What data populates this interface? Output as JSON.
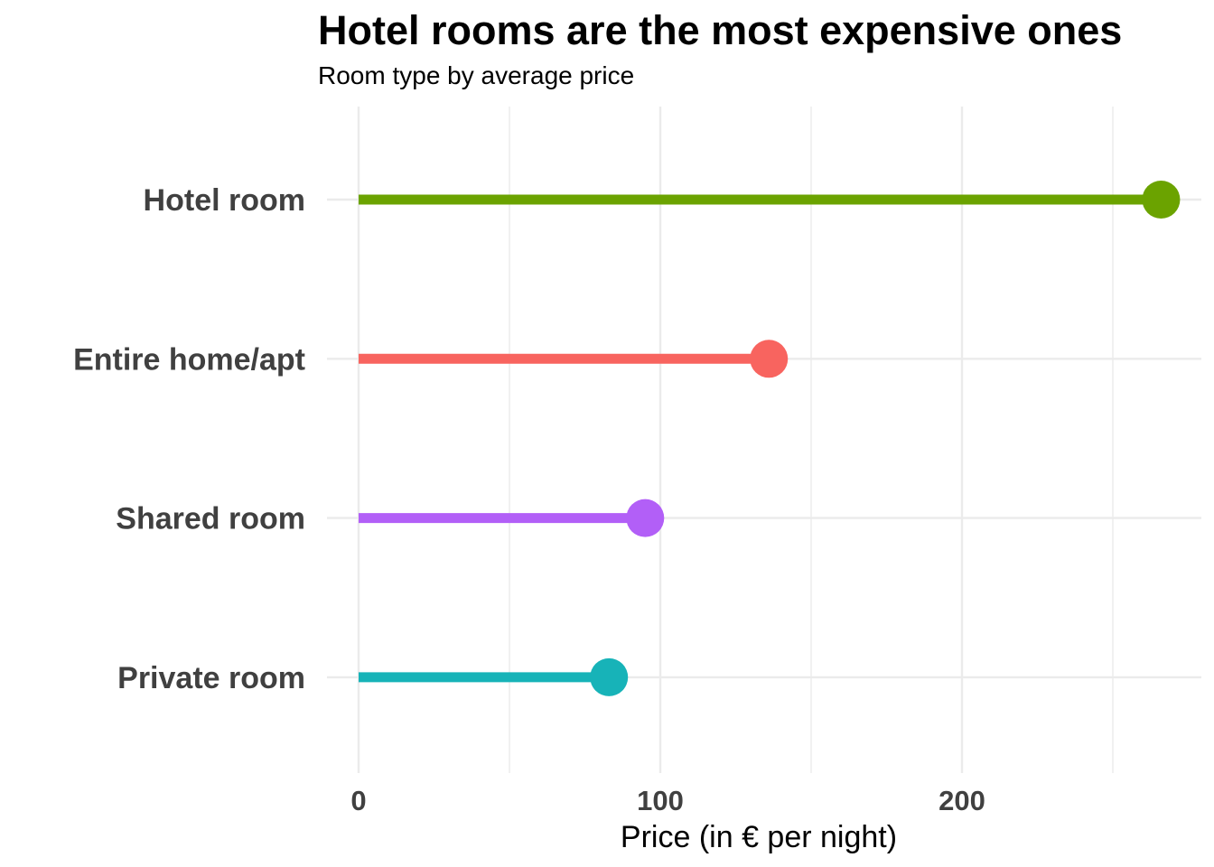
{
  "chart_data": {
    "type": "lollipop",
    "title": "Hotel rooms are the most expensive ones",
    "subtitle": "Room type by average price",
    "xlabel": "Price (in € per night)",
    "ylabel": "",
    "xlim": [
      0,
      280
    ],
    "x_ticks": [
      0,
      100,
      200
    ],
    "categories": [
      "Hotel room",
      "Entire home/apt",
      "Shared room",
      "Private room"
    ],
    "values": [
      266,
      136,
      95,
      83
    ],
    "colors": [
      "#6BA300",
      "#F8645F",
      "#B25FF7",
      "#17B3B8"
    ],
    "grid": true,
    "legend": "none"
  }
}
